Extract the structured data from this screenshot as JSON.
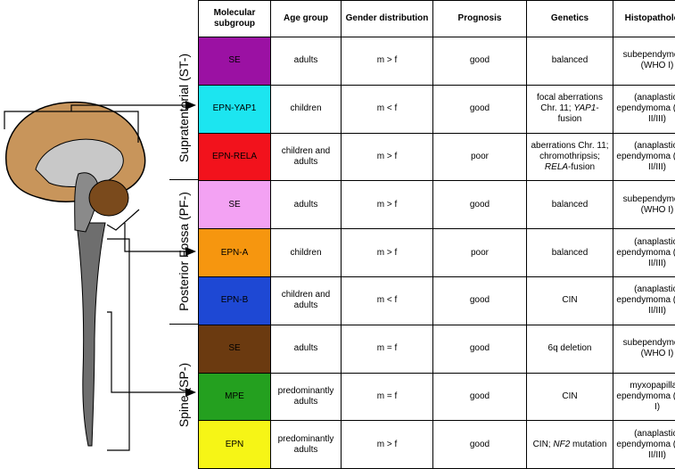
{
  "header": [
    "Molecular subgroup",
    "Age group",
    "Gender distribution",
    "Prognosis",
    "Genetics",
    "Histopathology"
  ],
  "sections": [
    {
      "label": "Supratentorial (ST-)",
      "rows": [
        {
          "color": "#9b11a3",
          "cells": [
            "SE",
            "adults",
            "m > f",
            "good",
            "balanced",
            "subependymoma (WHO I)"
          ]
        },
        {
          "color": "#1ce5f0",
          "cells": [
            "EPN-YAP1",
            "children",
            "m < f",
            "good",
            [
              {
                "text": "focal aberrations Chr. 11; "
              },
              {
                "text": "YAP1",
                "italic": true
              },
              {
                "text": "-fusion"
              }
            ],
            "(anaplastic) ependymoma (WHO II/III)"
          ]
        },
        {
          "color": "#f2121c",
          "cells": [
            "EPN-RELA",
            "children and adults",
            "m > f",
            "poor",
            [
              {
                "text": "aberrations Chr. 11; chromothripsis; "
              },
              {
                "text": "RELA",
                "italic": true
              },
              {
                "text": "-fusion"
              }
            ],
            "(anaplastic) ependymoma (WHO II/III)"
          ]
        }
      ]
    },
    {
      "label": "Posterior Fossa (PF-)",
      "rows": [
        {
          "color": "#f3a2f3",
          "cells": [
            "SE",
            "adults",
            "m > f",
            "good",
            "balanced",
            "subependymoma (WHO I)"
          ]
        },
        {
          "color": "#f6960f",
          "cells": [
            "EPN-A",
            "children",
            "m > f",
            "poor",
            "balanced",
            "(anaplastic) ependymoma (WHO II/III)"
          ]
        },
        {
          "color": "#1e48d4",
          "cells": [
            "EPN-B",
            "children and adults",
            "m < f",
            "good",
            "CIN",
            "(anaplastic) ependymoma (WHO II/III)"
          ]
        }
      ]
    },
    {
      "label": "Spine (SP-)",
      "rows": [
        {
          "color": "#6b3a10",
          "cells": [
            "SE",
            "adults",
            "m = f",
            "good",
            "6q deletion",
            "subependymoma (WHO I)"
          ]
        },
        {
          "color": "#24a01f",
          "cells": [
            "MPE",
            "predominantly adults",
            "m = f",
            "good",
            "CIN",
            "myxopapillary ependymoma (WHO I)"
          ]
        },
        {
          "color": "#f6f516",
          "cells": [
            "EPN",
            "predominantly adults",
            "m > f",
            "good",
            [
              {
                "text": "CIN; "
              },
              {
                "text": "NF2",
                "italic": true
              },
              {
                "text": " mutation"
              }
            ],
            "(anaplastic) ependymoma (WHO II/III)"
          ]
        }
      ]
    }
  ]
}
